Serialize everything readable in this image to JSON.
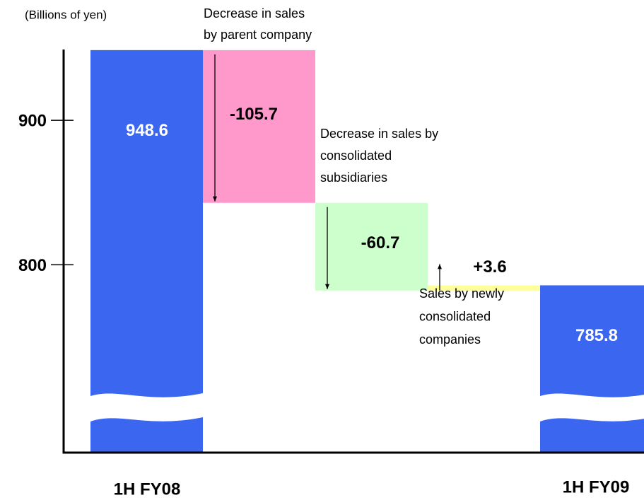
{
  "chart_data": {
    "type": "waterfall",
    "y_axis_label": "(Billions of yen)",
    "categories": [
      "1H FY08",
      null,
      null,
      null,
      "1H FY09"
    ],
    "kinds": [
      "total",
      "delta",
      "delta",
      "delta",
      "total"
    ],
    "values": [
      948.6,
      -105.7,
      -60.7,
      3.6,
      785.8
    ],
    "value_labels": [
      "948.6",
      "-105.7",
      "-60.7",
      "+3.6",
      "785.8"
    ],
    "colors": [
      "#3a66f0",
      "#ff99cc",
      "#ccffcc",
      "#ffff99",
      "#3a66f0"
    ],
    "ylim": [
      670,
      950
    ],
    "yticks": [
      800,
      900
    ],
    "axis_break": true,
    "annotations": [
      {
        "lines": [
          "Decrease in sales",
          "by parent company"
        ]
      },
      {
        "lines": [
          "Decrease in sales by",
          "consolidated",
          "subsidiaries"
        ]
      },
      {
        "lines": [
          "Sales by newly",
          "consolidated",
          "companies"
        ]
      }
    ]
  }
}
